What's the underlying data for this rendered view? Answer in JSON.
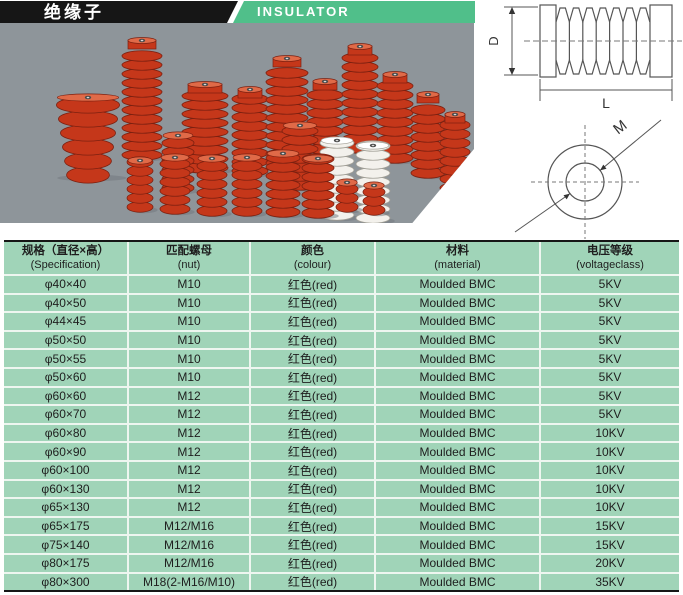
{
  "header": {
    "title_cn": "绝缘子",
    "title_en": "INSULATOR"
  },
  "drawings": {
    "side_view": {
      "diameter_label": "D",
      "length_label": "L"
    },
    "top_view": {
      "thread_label": "M"
    }
  },
  "colors": {
    "banner_black": "#161616",
    "banner_green": "#50bf8a",
    "table_green": "#a0d4b8",
    "grid_line": "#eef6f0",
    "photo_background": "#8e959a",
    "product_red": "#c5371a",
    "product_red_dark": "#7c2010",
    "product_red_light": "#e06a48",
    "product_white": "#f3f1ec",
    "drawing_line": "#555555"
  },
  "table": {
    "columns": [
      {
        "cn": "规格（直径×高）",
        "en": "(Specification)"
      },
      {
        "cn": "匹配螺母",
        "en": "(nut)"
      },
      {
        "cn": "颜色",
        "en": "(colour)"
      },
      {
        "cn": "材料",
        "en": "(material)"
      },
      {
        "cn": "电压等级",
        "en": "(voltageclass)"
      }
    ],
    "rows": [
      [
        "φ40×40",
        "M10",
        "红色(red)",
        "Moulded BMC",
        "5KV"
      ],
      [
        "φ40×50",
        "M10",
        "红色(red)",
        "Moulded BMC",
        "5KV"
      ],
      [
        "φ44×45",
        "M10",
        "红色(red)",
        "Moulded BMC",
        "5KV"
      ],
      [
        "φ50×50",
        "M10",
        "红色(red)",
        "Moulded BMC",
        "5KV"
      ],
      [
        "φ50×55",
        "M10",
        "红色(red)",
        "Moulded BMC",
        "5KV"
      ],
      [
        "φ50×60",
        "M10",
        "红色(red)",
        "Moulded BMC",
        "5KV"
      ],
      [
        "φ60×60",
        "M12",
        "红色(red)",
        "Moulded BMC",
        "5KV"
      ],
      [
        "φ60×70",
        "M12",
        "红色(red)",
        "Moulded BMC",
        "5KV"
      ],
      [
        "φ60×80",
        "M12",
        "红色(red)",
        "Moulded BMC",
        "10KV"
      ],
      [
        "φ60×90",
        "M12",
        "红色(red)",
        "Moulded BMC",
        "10KV"
      ],
      [
        "φ60×100",
        "M12",
        "红色(red)",
        "Moulded BMC",
        "10KV"
      ],
      [
        "φ60×130",
        "M12",
        "红色(red)",
        "Moulded BMC",
        "10KV"
      ],
      [
        "φ65×130",
        "M12",
        "红色(red)",
        "Moulded BMC",
        "10KV"
      ],
      [
        "φ65×175",
        "M12/M16",
        "红色(red)",
        "Moulded BMC",
        "15KV"
      ],
      [
        "φ75×140",
        "M12/M16",
        "红色(red)",
        "Moulded BMC",
        "15KV"
      ],
      [
        "φ80×175",
        "M12/M16",
        "红色(red)",
        "Moulded BMC",
        "20KV"
      ],
      [
        "φ80×300",
        "M18(2-M16/M10)",
        "红色(red)",
        "Moulded BMC",
        "35KV"
      ]
    ]
  }
}
